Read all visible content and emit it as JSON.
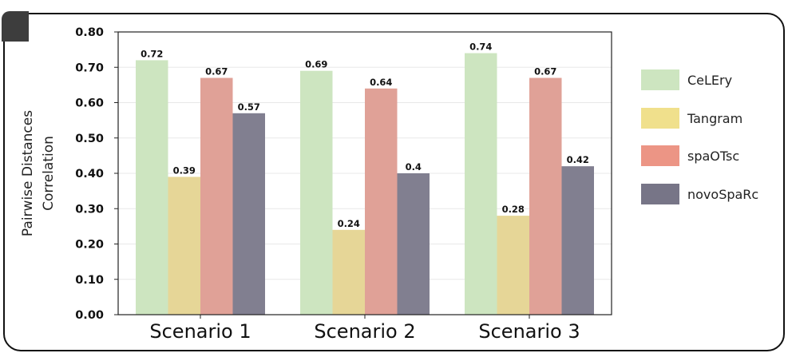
{
  "chart_data": {
    "type": "bar",
    "title": "",
    "xlabel": "",
    "ylabel_lines": [
      "Pairwise Distances",
      "Correlation"
    ],
    "categories": [
      "Scenario 1",
      "Scenario 2",
      "Scenario 3"
    ],
    "ylim": [
      0,
      0.8
    ],
    "yticks": [
      "0.00",
      "0.10",
      "0.20",
      "0.30",
      "0.40",
      "0.50",
      "0.60",
      "0.70",
      "0.80"
    ],
    "grid": true,
    "legend_position": "right",
    "series": [
      {
        "name": "CeLEry",
        "color": "#cde5c0",
        "values": [
          0.72,
          0.69,
          0.74
        ],
        "labels": [
          "0.72",
          "0.69",
          "0.74"
        ]
      },
      {
        "name": "Tangram",
        "color": "#e6d697",
        "values": [
          0.39,
          0.24,
          0.28
        ],
        "labels": [
          "0.39",
          "0.24",
          "0.28"
        ]
      },
      {
        "name": "spaOTsc",
        "color": "#e0a197",
        "values": [
          0.67,
          0.64,
          0.67
        ],
        "labels": [
          "0.67",
          "0.64",
          "0.67"
        ]
      },
      {
        "name": "novoSpaRc",
        "color": "#817f90",
        "values": [
          0.57,
          0.4,
          0.42
        ],
        "labels": [
          "0.57",
          "0.4",
          "0.42"
        ]
      }
    ],
    "legend_swatch_colors": [
      "#cde5c0",
      "#f0e08c",
      "#ec9585",
      "#777587"
    ]
  }
}
